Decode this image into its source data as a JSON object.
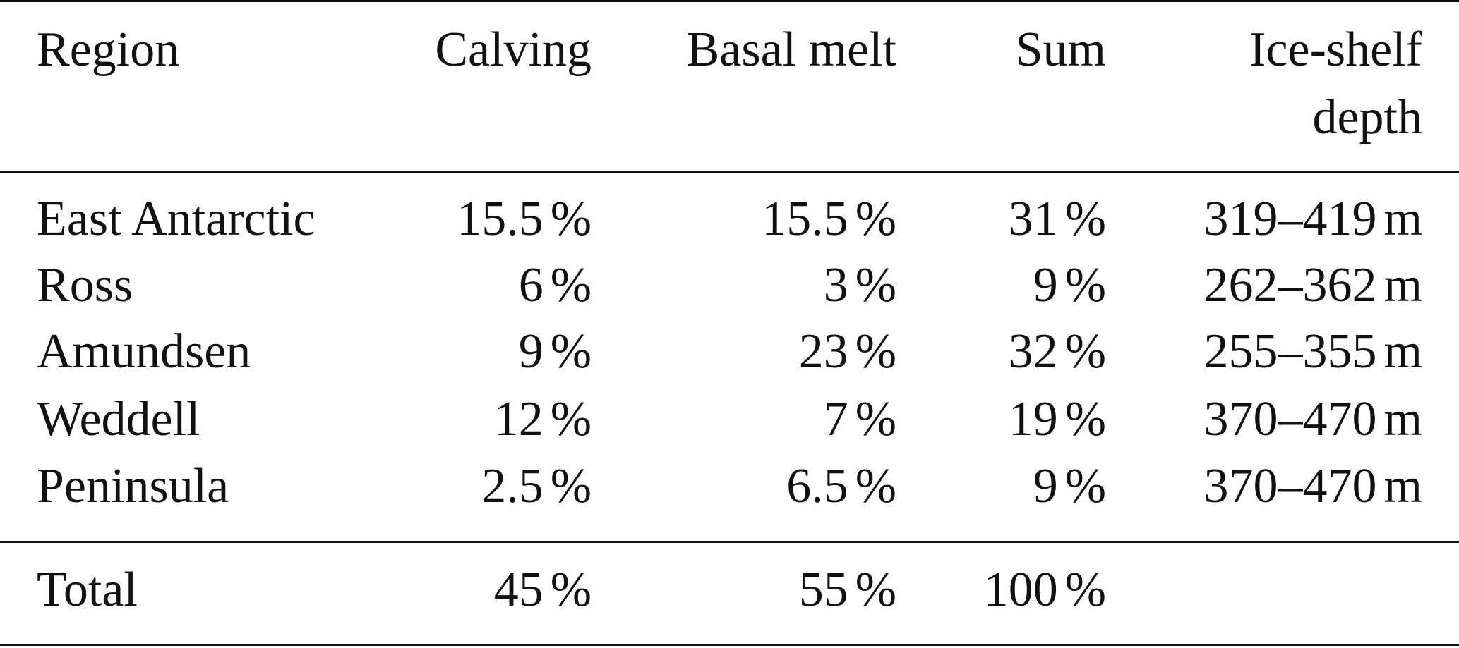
{
  "headers": {
    "region": "Region",
    "calving": "Calving",
    "basal_melt": "Basal melt",
    "sum": "Sum",
    "ice_shelf_line1": "Ice-shelf",
    "ice_shelf_line2": "depth"
  },
  "rows": [
    {
      "region": "East Antarctic",
      "calving": "15.5",
      "basal_melt": "15.5",
      "sum": "31",
      "depth": "319–419"
    },
    {
      "region": "Ross",
      "calving": "6",
      "basal_melt": "3",
      "sum": "9",
      "depth": "262–362"
    },
    {
      "region": "Amundsen",
      "calving": "9",
      "basal_melt": "23",
      "sum": "32",
      "depth": "255–355"
    },
    {
      "region": "Weddell",
      "calving": "12",
      "basal_melt": "7",
      "sum": "19",
      "depth": "370–470"
    },
    {
      "region": "Peninsula",
      "calving": "2.5",
      "basal_melt": "6.5",
      "sum": "9",
      "depth": "370–470"
    }
  ],
  "total": {
    "label": "Total",
    "calving": "45",
    "basal_melt": "55",
    "sum": "100"
  },
  "units": {
    "percent": "%",
    "meters": "m"
  }
}
